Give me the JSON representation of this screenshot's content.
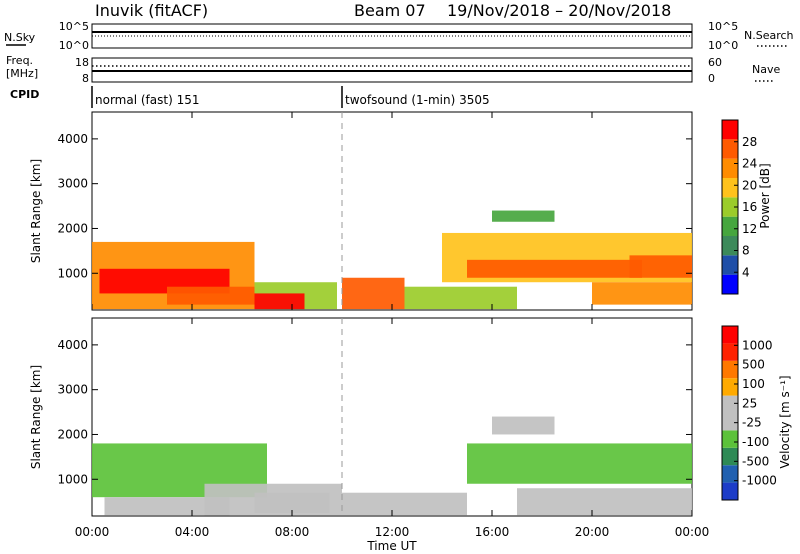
{
  "header": {
    "station": "Inuvik (fitACF)",
    "beam": "Beam 07",
    "dates": "19/Nov/2018 – 20/Nov/2018"
  },
  "summary_panels": {
    "nsky_label": "N.Sky",
    "nsky_ticks": [
      "10^5",
      "10^0"
    ],
    "nsky_right_ticks": [
      "10^5",
      "10^0"
    ],
    "nsearch_label": "N.Search",
    "freq_label_1": "Freq.",
    "freq_label_2": "[MHz]",
    "freq_ticks": [
      "18",
      "8"
    ],
    "nave_ticks": [
      "60",
      "0"
    ],
    "nave_label": "Nave",
    "cpid_label": "CPID",
    "cpid_segments": [
      {
        "label": "normal (fast) 151",
        "start_hour": 0
      },
      {
        "label": "twofsound (1-min) 3505",
        "start_hour": 10
      }
    ]
  },
  "colors": {
    "power": [
      "#0000ff",
      "#1f4fa8",
      "#3c8a5a",
      "#46a63e",
      "#9bcc2a",
      "#ffc21c",
      "#ff8c00",
      "#ff5a00",
      "#ff0000"
    ],
    "velocity": [
      "#1c3cc8",
      "#2060b0",
      "#2e8a55",
      "#5cc23a",
      "#c0c0c0",
      "#c0c0c0",
      "#ffaa00",
      "#ff7800",
      "#ff2200",
      "#ff0000"
    ]
  },
  "chart_data": [
    {
      "type": "heatmap",
      "name": "power",
      "ylabel": "Slant Range [km]",
      "colorbar_label": "Power [dB]",
      "colorbar_ticks": [
        "28",
        "24",
        "20",
        "16",
        "12",
        "8",
        "4"
      ],
      "colorbar_range": [
        0,
        32
      ],
      "yticks": [
        "1000",
        "2000",
        "3000",
        "4000"
      ],
      "ylim": [
        180,
        4600
      ],
      "xlim": [
        0,
        24
      ],
      "regions": [
        {
          "t": [
            0,
            6.5
          ],
          "r": [
            200,
            1700
          ],
          "value": 22
        },
        {
          "t": [
            0.3,
            5.5
          ],
          "r": [
            550,
            1100
          ],
          "value": 29
        },
        {
          "t": [
            3.0,
            6.5
          ],
          "r": [
            300,
            700
          ],
          "value": 26
        },
        {
          "t": [
            6.5,
            9.8
          ],
          "r": [
            200,
            800
          ],
          "value": 17
        },
        {
          "t": [
            6.5,
            8.5
          ],
          "r": [
            200,
            550
          ],
          "value": 29
        },
        {
          "t": [
            10.0,
            12.5
          ],
          "r": [
            200,
            900
          ],
          "value": 27
        },
        {
          "t": [
            12.5,
            17.0
          ],
          "r": [
            200,
            700
          ],
          "value": 16
        },
        {
          "t": [
            14.0,
            24.0
          ],
          "r": [
            800,
            1900
          ],
          "value": 19
        },
        {
          "t": [
            15.0,
            22.0
          ],
          "r": [
            900,
            1300
          ],
          "value": 27
        },
        {
          "t": [
            16.0,
            18.5
          ],
          "r": [
            2150,
            2400
          ],
          "value": 12
        },
        {
          "t": [
            20.0,
            24.0
          ],
          "r": [
            300,
            800
          ],
          "value": 23
        },
        {
          "t": [
            21.5,
            24.0
          ],
          "r": [
            900,
            1400
          ],
          "value": 28
        }
      ]
    },
    {
      "type": "heatmap",
      "name": "velocity",
      "ylabel": "Slant Range [km]",
      "colorbar_label": "Velocity [m s⁻¹]",
      "colorbar_ticks": [
        "1000",
        "500",
        "100",
        "25",
        "-25",
        "-100",
        "-500",
        "-1000"
      ],
      "colorbar_range": [
        -1000,
        1000
      ],
      "yticks": [
        "1000",
        "2000",
        "3000",
        "4000"
      ],
      "ylim": [
        180,
        4600
      ],
      "xlim": [
        0,
        24
      ],
      "regions": [
        {
          "t": [
            0,
            7.0
          ],
          "r": [
            600,
            1800
          ],
          "value": -300
        },
        {
          "t": [
            0.5,
            5.5
          ],
          "r": [
            200,
            600
          ],
          "value": -150
        },
        {
          "t": [
            4.5,
            10.0
          ],
          "r": [
            200,
            900
          ],
          "value": 0
        },
        {
          "t": [
            6.5,
            9.5
          ],
          "r": [
            250,
            700
          ],
          "value": 10
        },
        {
          "t": [
            10.0,
            15.0
          ],
          "r": [
            200,
            700
          ],
          "value": 80
        },
        {
          "t": [
            15.0,
            24.0
          ],
          "r": [
            900,
            1800
          ],
          "value": -300
        },
        {
          "t": [
            16.0,
            18.5
          ],
          "r": [
            2000,
            2400
          ],
          "value": 10
        },
        {
          "t": [
            17.0,
            24.0
          ],
          "r": [
            200,
            800
          ],
          "value": 100
        }
      ]
    }
  ],
  "x_axis": {
    "ticks": [
      "00:00",
      "04:00",
      "08:00",
      "12:00",
      "16:00",
      "20:00",
      "00:00"
    ],
    "label": "Time UT"
  }
}
